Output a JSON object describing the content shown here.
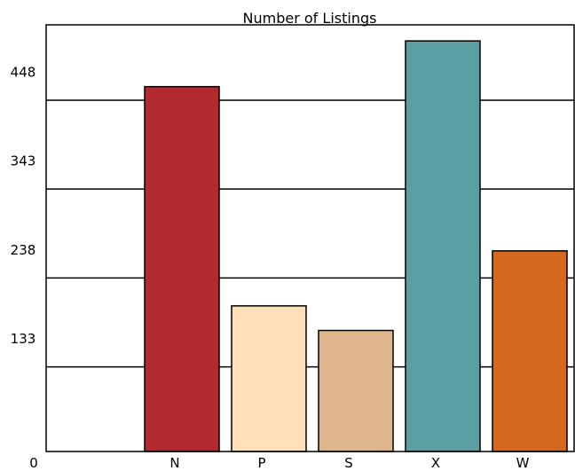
{
  "chart_data": {
    "type": "bar",
    "title": "Number of Listings",
    "categories": [
      "N",
      "P",
      "S",
      "X",
      "W"
    ],
    "values": [
      431,
      172,
      143,
      485,
      237
    ],
    "ylim": [
      0,
      504
    ],
    "yticks": [
      0,
      133,
      238,
      343,
      448
    ],
    "grid": true,
    "legend": "none",
    "colors": [
      "#b22a2e",
      "#ffe0b8",
      "#dfb68c",
      "#5b9fa2",
      "#d4681c"
    ]
  }
}
